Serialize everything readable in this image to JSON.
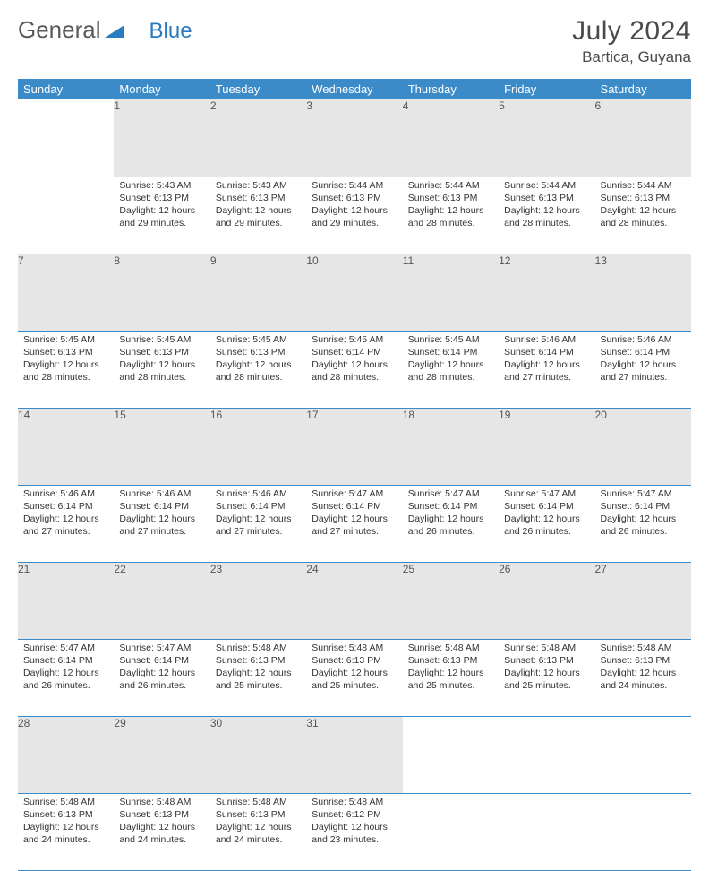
{
  "logo": {
    "part1": "General",
    "part2": "Blue"
  },
  "title": "July 2024",
  "location": "Bartica, Guyana",
  "colors": {
    "header_bg": "#3b8bc9",
    "header_text": "#ffffff",
    "daynum_bg": "#e6e6e6",
    "text": "#333333",
    "rule": "#3b8bc9",
    "logo_gray": "#5a5a5a",
    "logo_blue": "#2a7bbf"
  },
  "fonts": {
    "title_size": 30,
    "location_size": 17,
    "th_size": 13,
    "cell_size": 10.5
  },
  "weekdays": [
    "Sunday",
    "Monday",
    "Tuesday",
    "Wednesday",
    "Thursday",
    "Friday",
    "Saturday"
  ],
  "weeks": [
    {
      "nums": [
        "",
        "1",
        "2",
        "3",
        "4",
        "5",
        "6"
      ],
      "cells": [
        null,
        {
          "sunrise": "Sunrise: 5:43 AM",
          "sunset": "Sunset: 6:13 PM",
          "daylight": "Daylight: 12 hours and 29 minutes."
        },
        {
          "sunrise": "Sunrise: 5:43 AM",
          "sunset": "Sunset: 6:13 PM",
          "daylight": "Daylight: 12 hours and 29 minutes."
        },
        {
          "sunrise": "Sunrise: 5:44 AM",
          "sunset": "Sunset: 6:13 PM",
          "daylight": "Daylight: 12 hours and 29 minutes."
        },
        {
          "sunrise": "Sunrise: 5:44 AM",
          "sunset": "Sunset: 6:13 PM",
          "daylight": "Daylight: 12 hours and 28 minutes."
        },
        {
          "sunrise": "Sunrise: 5:44 AM",
          "sunset": "Sunset: 6:13 PM",
          "daylight": "Daylight: 12 hours and 28 minutes."
        },
        {
          "sunrise": "Sunrise: 5:44 AM",
          "sunset": "Sunset: 6:13 PM",
          "daylight": "Daylight: 12 hours and 28 minutes."
        }
      ]
    },
    {
      "nums": [
        "7",
        "8",
        "9",
        "10",
        "11",
        "12",
        "13"
      ],
      "cells": [
        {
          "sunrise": "Sunrise: 5:45 AM",
          "sunset": "Sunset: 6:13 PM",
          "daylight": "Daylight: 12 hours and 28 minutes."
        },
        {
          "sunrise": "Sunrise: 5:45 AM",
          "sunset": "Sunset: 6:13 PM",
          "daylight": "Daylight: 12 hours and 28 minutes."
        },
        {
          "sunrise": "Sunrise: 5:45 AM",
          "sunset": "Sunset: 6:13 PM",
          "daylight": "Daylight: 12 hours and 28 minutes."
        },
        {
          "sunrise": "Sunrise: 5:45 AM",
          "sunset": "Sunset: 6:14 PM",
          "daylight": "Daylight: 12 hours and 28 minutes."
        },
        {
          "sunrise": "Sunrise: 5:45 AM",
          "sunset": "Sunset: 6:14 PM",
          "daylight": "Daylight: 12 hours and 28 minutes."
        },
        {
          "sunrise": "Sunrise: 5:46 AM",
          "sunset": "Sunset: 6:14 PM",
          "daylight": "Daylight: 12 hours and 27 minutes."
        },
        {
          "sunrise": "Sunrise: 5:46 AM",
          "sunset": "Sunset: 6:14 PM",
          "daylight": "Daylight: 12 hours and 27 minutes."
        }
      ]
    },
    {
      "nums": [
        "14",
        "15",
        "16",
        "17",
        "18",
        "19",
        "20"
      ],
      "cells": [
        {
          "sunrise": "Sunrise: 5:46 AM",
          "sunset": "Sunset: 6:14 PM",
          "daylight": "Daylight: 12 hours and 27 minutes."
        },
        {
          "sunrise": "Sunrise: 5:46 AM",
          "sunset": "Sunset: 6:14 PM",
          "daylight": "Daylight: 12 hours and 27 minutes."
        },
        {
          "sunrise": "Sunrise: 5:46 AM",
          "sunset": "Sunset: 6:14 PM",
          "daylight": "Daylight: 12 hours and 27 minutes."
        },
        {
          "sunrise": "Sunrise: 5:47 AM",
          "sunset": "Sunset: 6:14 PM",
          "daylight": "Daylight: 12 hours and 27 minutes."
        },
        {
          "sunrise": "Sunrise: 5:47 AM",
          "sunset": "Sunset: 6:14 PM",
          "daylight": "Daylight: 12 hours and 26 minutes."
        },
        {
          "sunrise": "Sunrise: 5:47 AM",
          "sunset": "Sunset: 6:14 PM",
          "daylight": "Daylight: 12 hours and 26 minutes."
        },
        {
          "sunrise": "Sunrise: 5:47 AM",
          "sunset": "Sunset: 6:14 PM",
          "daylight": "Daylight: 12 hours and 26 minutes."
        }
      ]
    },
    {
      "nums": [
        "21",
        "22",
        "23",
        "24",
        "25",
        "26",
        "27"
      ],
      "cells": [
        {
          "sunrise": "Sunrise: 5:47 AM",
          "sunset": "Sunset: 6:14 PM",
          "daylight": "Daylight: 12 hours and 26 minutes."
        },
        {
          "sunrise": "Sunrise: 5:47 AM",
          "sunset": "Sunset: 6:14 PM",
          "daylight": "Daylight: 12 hours and 26 minutes."
        },
        {
          "sunrise": "Sunrise: 5:48 AM",
          "sunset": "Sunset: 6:13 PM",
          "daylight": "Daylight: 12 hours and 25 minutes."
        },
        {
          "sunrise": "Sunrise: 5:48 AM",
          "sunset": "Sunset: 6:13 PM",
          "daylight": "Daylight: 12 hours and 25 minutes."
        },
        {
          "sunrise": "Sunrise: 5:48 AM",
          "sunset": "Sunset: 6:13 PM",
          "daylight": "Daylight: 12 hours and 25 minutes."
        },
        {
          "sunrise": "Sunrise: 5:48 AM",
          "sunset": "Sunset: 6:13 PM",
          "daylight": "Daylight: 12 hours and 25 minutes."
        },
        {
          "sunrise": "Sunrise: 5:48 AM",
          "sunset": "Sunset: 6:13 PM",
          "daylight": "Daylight: 12 hours and 24 minutes."
        }
      ]
    },
    {
      "nums": [
        "28",
        "29",
        "30",
        "31",
        "",
        "",
        ""
      ],
      "cells": [
        {
          "sunrise": "Sunrise: 5:48 AM",
          "sunset": "Sunset: 6:13 PM",
          "daylight": "Daylight: 12 hours and 24 minutes."
        },
        {
          "sunrise": "Sunrise: 5:48 AM",
          "sunset": "Sunset: 6:13 PM",
          "daylight": "Daylight: 12 hours and 24 minutes."
        },
        {
          "sunrise": "Sunrise: 5:48 AM",
          "sunset": "Sunset: 6:13 PM",
          "daylight": "Daylight: 12 hours and 24 minutes."
        },
        {
          "sunrise": "Sunrise: 5:48 AM",
          "sunset": "Sunset: 6:12 PM",
          "daylight": "Daylight: 12 hours and 23 minutes."
        },
        null,
        null,
        null
      ]
    }
  ]
}
